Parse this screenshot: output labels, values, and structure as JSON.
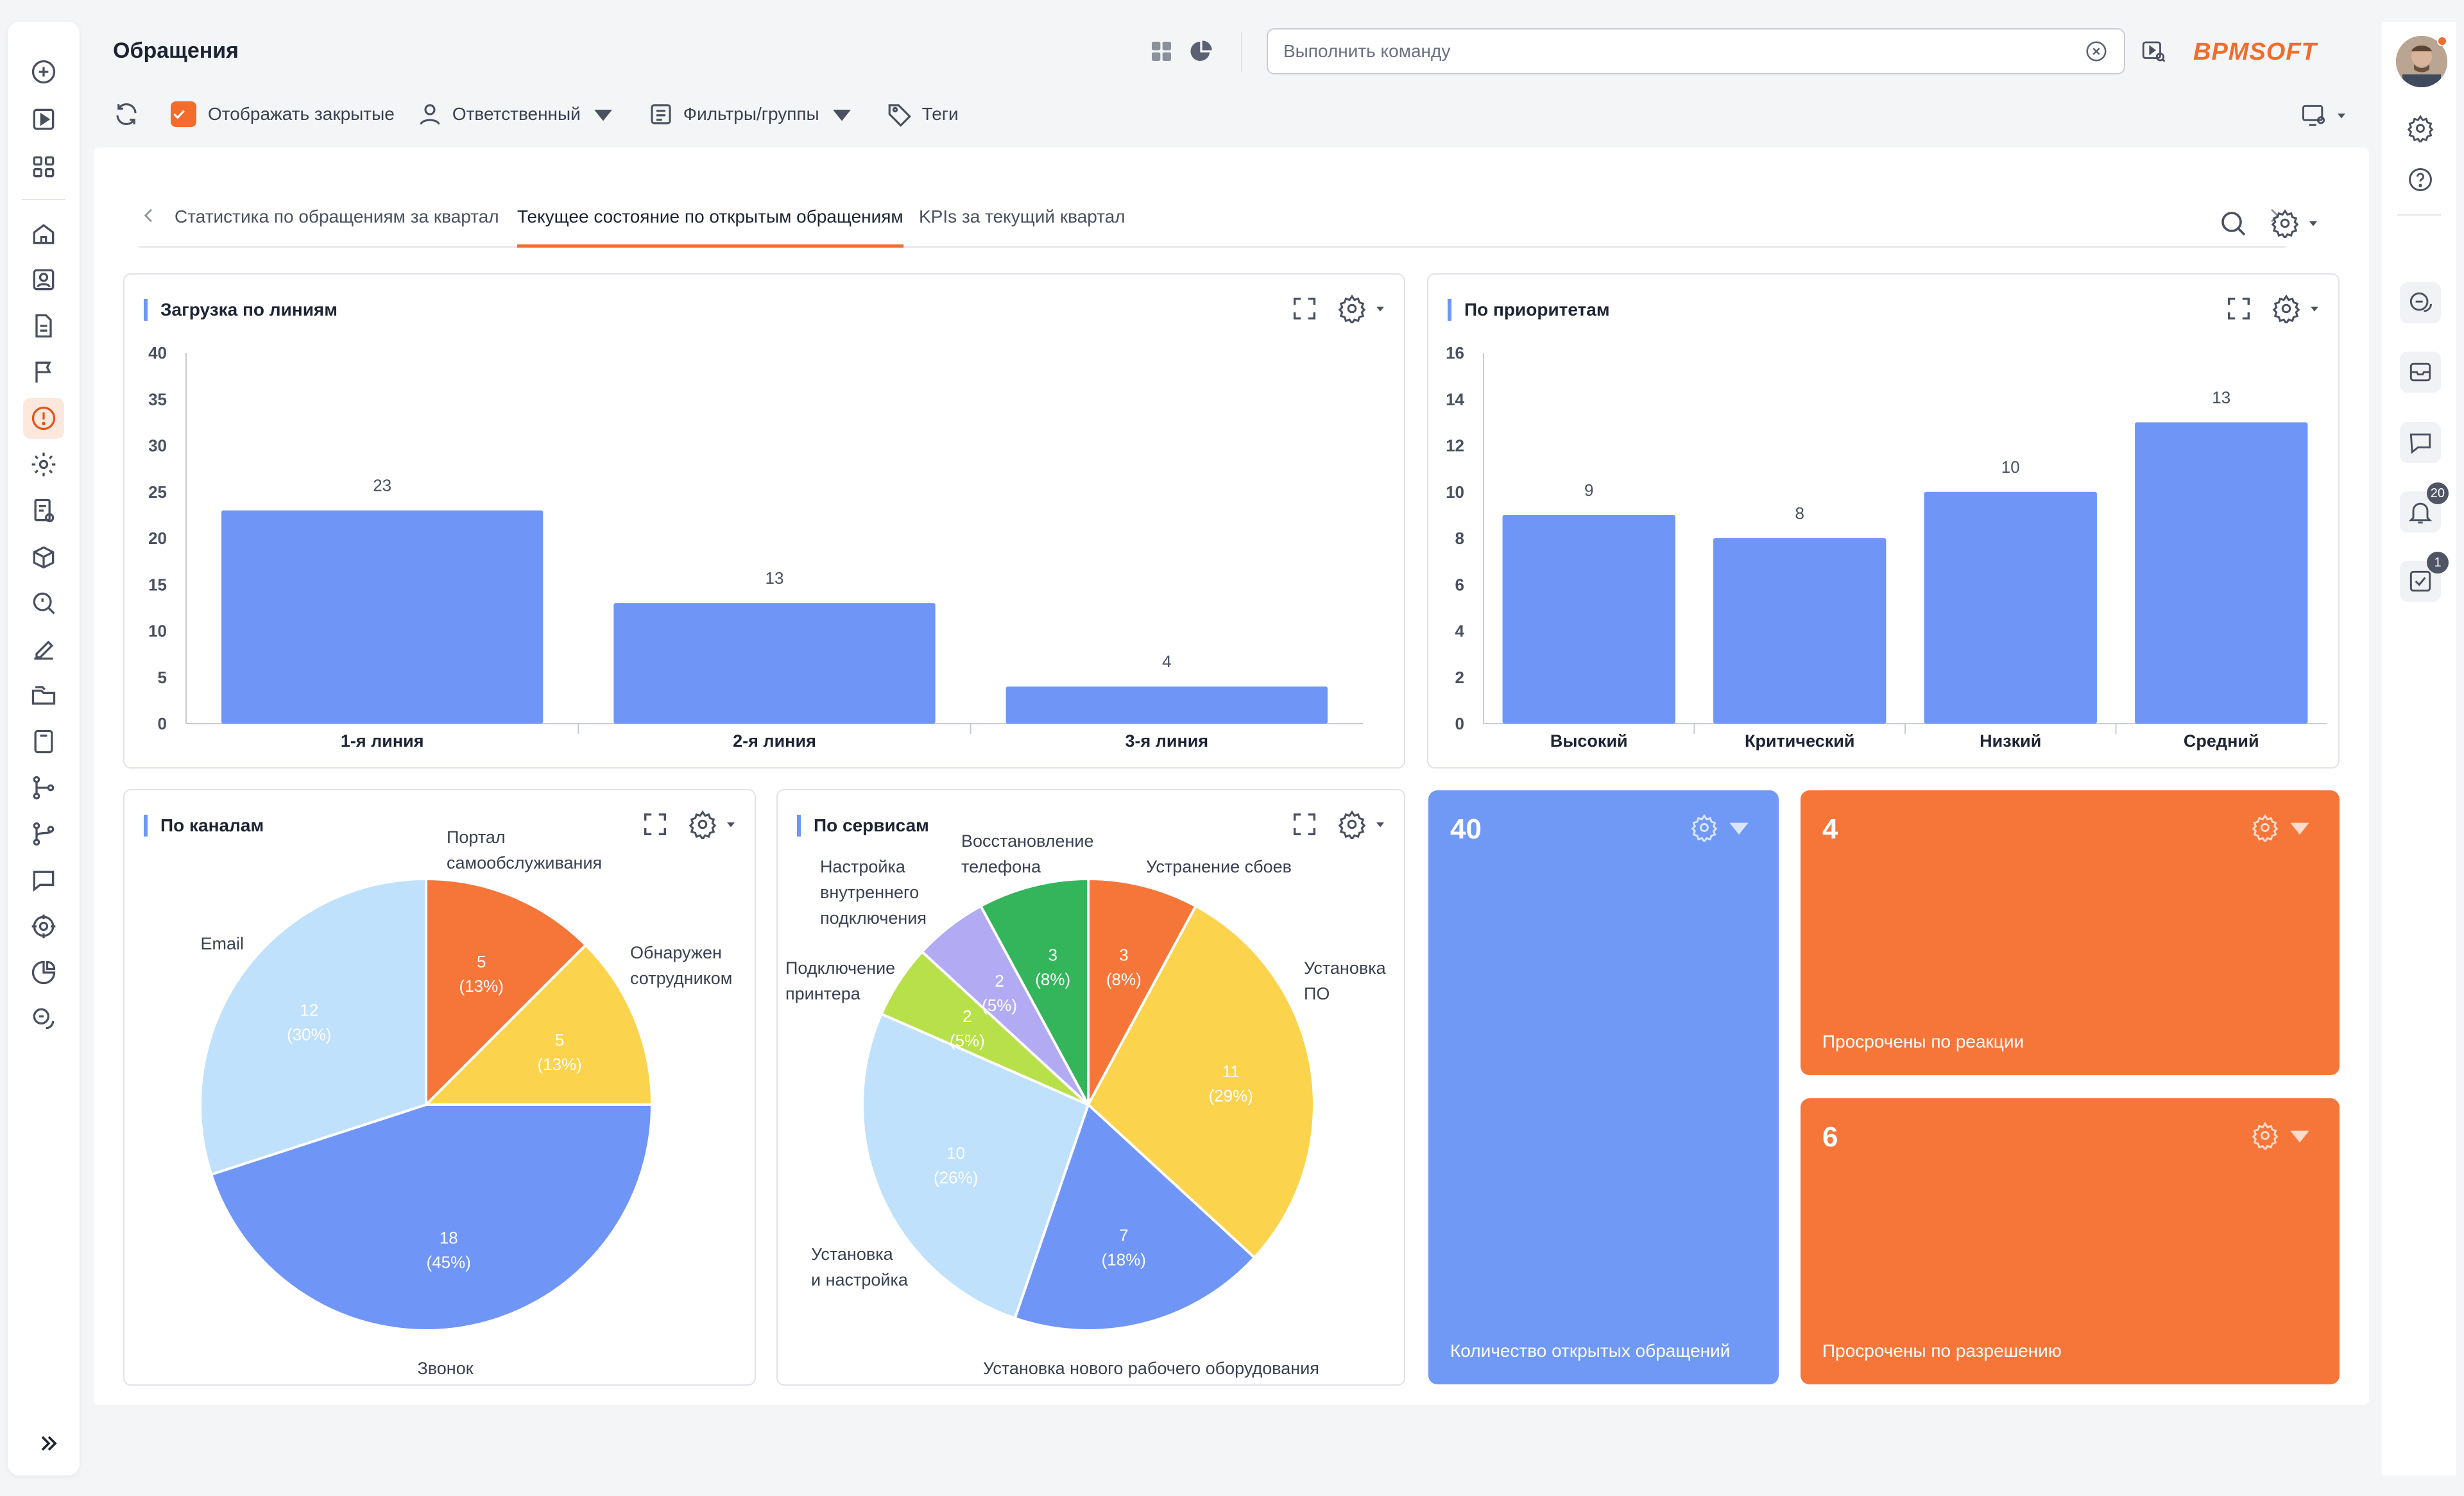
{
  "app": {
    "title": "Обращения",
    "brand": "BPMSOFT",
    "command_placeholder": "Выполнить команду",
    "accent_color": "#f26c2b",
    "bar_color": "#6f96f6"
  },
  "left_rail": {
    "items": [
      "add-icon",
      "play-icon",
      "apps-icon",
      "home-icon",
      "contacts-icon",
      "document-icon",
      "flag-icon",
      "cases-icon",
      "settings-icon",
      "report-settings-icon",
      "package-icon",
      "search-list-icon",
      "edit-icon",
      "folders-icon",
      "book-icon",
      "process-icon",
      "process-alt-icon",
      "chat-icon",
      "target-icon",
      "pie-chart-icon",
      "messages-icon"
    ],
    "active": "cases-icon"
  },
  "right_rail": {
    "notifications_count": "20",
    "tasks_count": "1"
  },
  "toolbar": {
    "show_closed_label": "Отображать закрытые",
    "owner_label": "Ответственный",
    "filters_label": "Фильтры/группы",
    "tags_label": "Теги"
  },
  "tabs": [
    {
      "label": "Статистика по обращениям за квартал",
      "active": false
    },
    {
      "label": "Текущее состояние по открытым обращениям",
      "active": true
    },
    {
      "label": "KPIs за текущий квартал",
      "active": false
    }
  ],
  "widgets": {
    "lines_title": "Загрузка по линиям",
    "priority_title": "По приоритетам",
    "channels_title": "По каналам",
    "services_title": "По сервисам"
  },
  "tiles": [
    {
      "value": "40",
      "caption": "Количество открытых обращений",
      "color": "#7099f6"
    },
    {
      "value": "4",
      "caption": "Просрочены по реакции",
      "color": "#f6763a"
    },
    {
      "value": "6",
      "caption": "Просрочены по разрешению",
      "color": "#f6763a"
    }
  ],
  "chart_data": [
    {
      "type": "bar",
      "title": "Загрузка по линиям",
      "categories": [
        "1-я линия",
        "2-я линия",
        "3-я линия"
      ],
      "values": [
        23,
        13,
        4
      ],
      "ylim": [
        0,
        40
      ],
      "yticks": [
        0,
        5,
        10,
        15,
        20,
        25,
        30,
        35,
        40
      ],
      "grid": false
    },
    {
      "type": "bar",
      "title": "По приоритетам",
      "categories": [
        "Высокий",
        "Критический",
        "Низкий",
        "Средний"
      ],
      "values": [
        9,
        8,
        10,
        13
      ],
      "ylim": [
        0,
        16
      ],
      "yticks": [
        0,
        2,
        4,
        6,
        8,
        10,
        12,
        14,
        16
      ],
      "grid": false
    },
    {
      "type": "pie",
      "title": "По каналам",
      "slices": [
        {
          "label": "Портал самообслуживания",
          "value": 5,
          "pct": "13%",
          "color": "#f6763a"
        },
        {
          "label": "Обнаружен сотрудником",
          "value": 5,
          "pct": "13%",
          "color": "#fbd34d"
        },
        {
          "label": "Звонок",
          "value": 18,
          "pct": "45%",
          "color": "#6f96f6"
        },
        {
          "label": "Email",
          "value": 12,
          "pct": "30%",
          "color": "#bfe1fb"
        }
      ]
    },
    {
      "type": "pie",
      "title": "По сервисам",
      "slices": [
        {
          "label": "Устранение сбоев",
          "value": 3,
          "pct": "8%",
          "color": "#f6763a"
        },
        {
          "label": "Установка ПО",
          "value": 11,
          "pct": "29%",
          "color": "#fbd34d"
        },
        {
          "label": "Установка нового рабочего оборудования",
          "value": 7,
          "pct": "18%",
          "color": "#6f96f6"
        },
        {
          "label": "Установка и настройка",
          "value": 10,
          "pct": "26%",
          "color": "#bfe1fb"
        },
        {
          "label": "Подключение принтера",
          "value": 2,
          "pct": "5%",
          "color": "#b8e04a"
        },
        {
          "label": "Настройка внутреннего подключения",
          "value": 2,
          "pct": "5%",
          "color": "#b3aaf4"
        },
        {
          "label": "Восстановление телефона",
          "value": 3,
          "pct": "8%",
          "color": "#34b55c"
        }
      ]
    }
  ]
}
